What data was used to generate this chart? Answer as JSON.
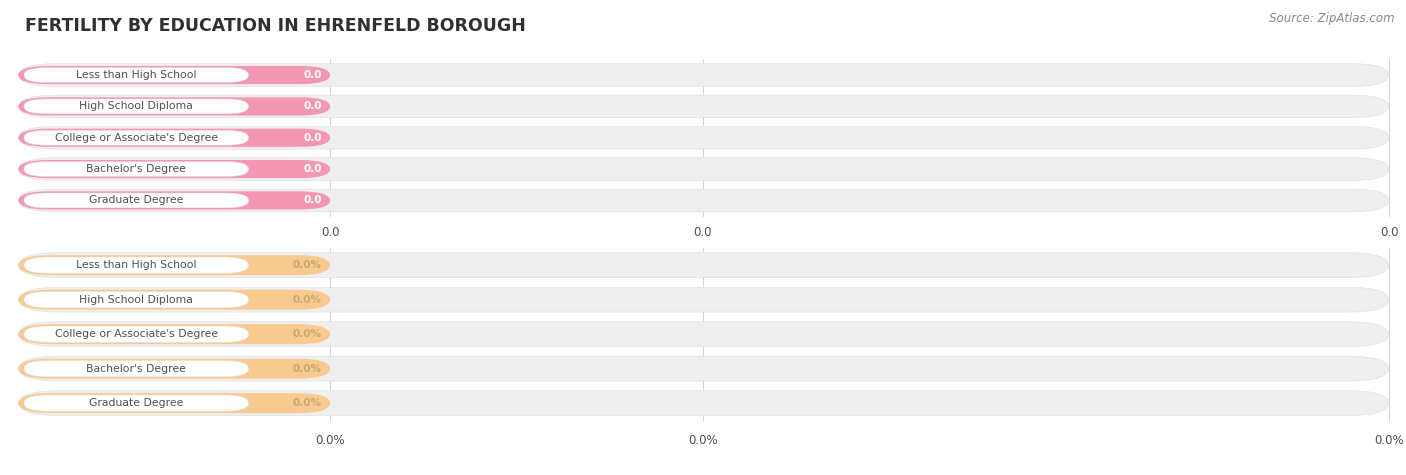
{
  "title": "FERTILITY BY EDUCATION IN EHRENFELD BOROUGH",
  "source_text": "Source: ZipAtlas.com",
  "categories": [
    "Less than High School",
    "High School Diploma",
    "College or Associate's Degree",
    "Bachelor's Degree",
    "Graduate Degree"
  ],
  "values_top": [
    0.0,
    0.0,
    0.0,
    0.0,
    0.0
  ],
  "values_bottom": [
    0.0,
    0.0,
    0.0,
    0.0,
    0.0
  ],
  "bar_color_top": "#F497B2",
  "bar_bg_color": "#EFEFEF",
  "bar_color_bottom": "#F9CA90",
  "text_color": "#505050",
  "title_color": "#303030",
  "source_color": "#888888",
  "background_color": "#FFFFFF",
  "grid_color": "#CCCCCC",
  "pill_edge_color": "#DDDDDD",
  "white": "#FFFFFF",
  "value_color_top": "#FFFFFF",
  "value_color_bottom": "#C8A870"
}
